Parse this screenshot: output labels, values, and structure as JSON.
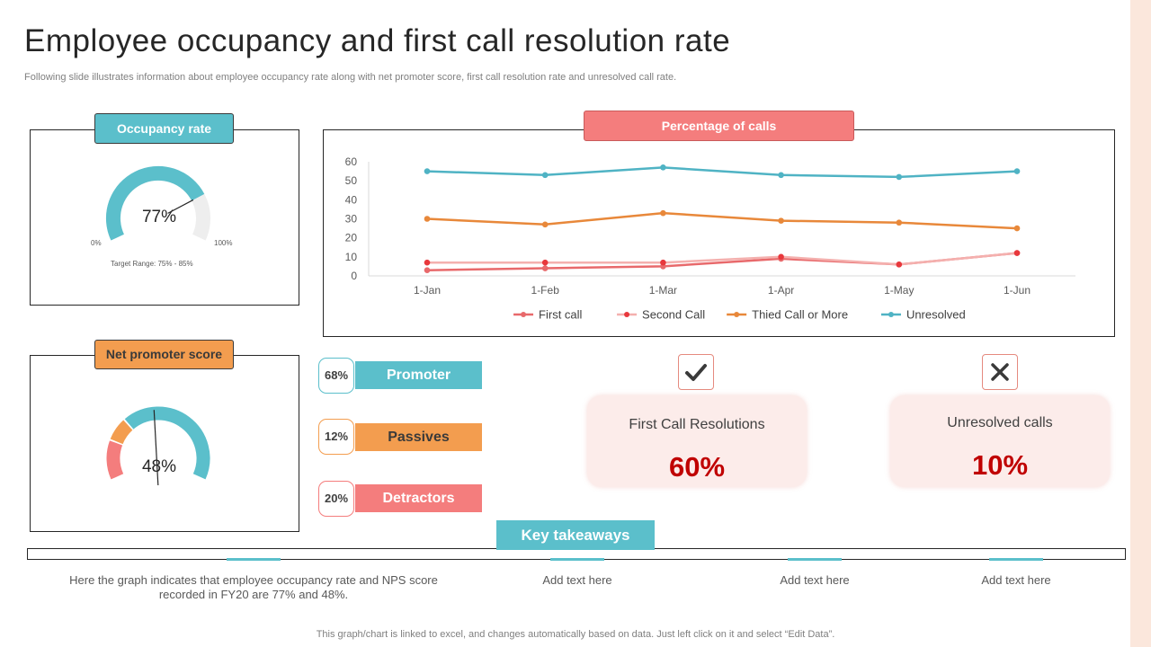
{
  "title": "Employee occupancy and first call resolution rate",
  "subtitle": "Following slide illustrates information about employee occupancy rate  along with net promoter score, first call resolution rate and unresolved call rate.",
  "occupancy": {
    "tag": "Occupancy rate",
    "value": 77,
    "value_label": "77%",
    "min_label": "0%",
    "max_label": "100%",
    "target_label": "Target Range: 75% - 85%",
    "color": "#5bbfcb"
  },
  "nps": {
    "tag": "Net promoter score",
    "value_label": "48%",
    "items": [
      {
        "percent_label": "68%",
        "label": "Promoter",
        "color": "#5bbfcb"
      },
      {
        "percent_label": "12%",
        "label": "Passives",
        "color": "#f39d4f"
      },
      {
        "percent_label": "20%",
        "label": "Detractors",
        "color": "#f47d7d"
      }
    ]
  },
  "chart_tag": "Percentage of calls",
  "chart_data": {
    "type": "line",
    "categories": [
      "1-Jan",
      "1-Feb",
      "1-Mar",
      "1-Apr",
      "1-May",
      "1-Jun"
    ],
    "ylim": [
      0,
      60
    ],
    "yticks": [
      "0",
      "10",
      "20",
      "30",
      "40",
      "50",
      "60"
    ],
    "grid": false,
    "legend_position": "bottom",
    "series": [
      {
        "name": "First call",
        "values": [
          3,
          4,
          5,
          9,
          6,
          12
        ],
        "color": "#e8696b"
      },
      {
        "name": "Second Call",
        "values": [
          7,
          7,
          7,
          10,
          6,
          12
        ],
        "color": "#f4b0ae"
      },
      {
        "name": "Thied Call or More",
        "values": [
          30,
          27,
          33,
          29,
          28,
          25
        ],
        "color": "#e8883a"
      },
      {
        "name": "Unresolved",
        "values": [
          55,
          53,
          57,
          53,
          52,
          55
        ],
        "color": "#4fb3c4"
      }
    ]
  },
  "kpis": [
    {
      "label": "First Call Resolutions",
      "value": "60%",
      "icon": "check-icon"
    },
    {
      "label": "Unresolved calls",
      "value": "10%",
      "icon": "close-icon"
    }
  ],
  "key_takeaways": {
    "title": "Key takeaways",
    "items": [
      "Here the graph indicates that employee occupancy rate and NPS score recorded in FY20 are 77% and 48%.",
      "Add text here",
      "Add text here",
      "Add text here"
    ]
  },
  "footer": "This graph/chart is linked to excel,  and changes automatically based on data. Just left click on it and select “Edit Data”."
}
